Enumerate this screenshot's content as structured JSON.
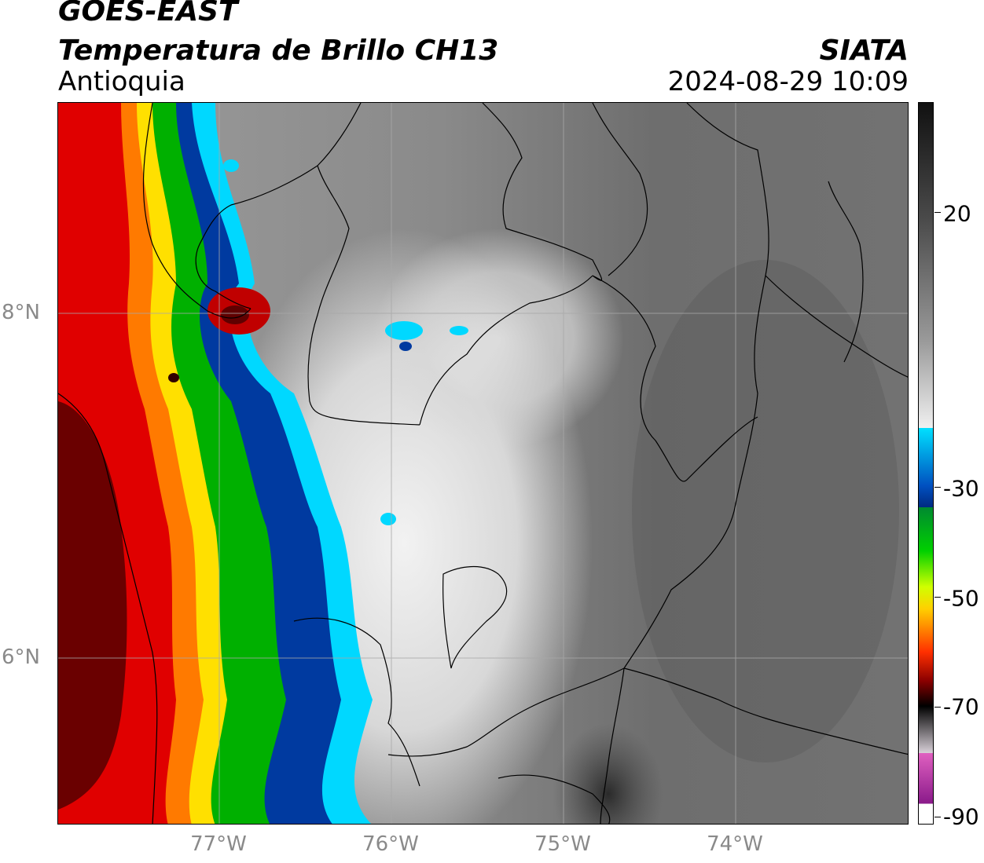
{
  "header": {
    "satellite": "GOES-EAST",
    "product": "Temperatura de Brillo CH13",
    "region": "Antioquia",
    "agency": "SIATA",
    "datetime": "2024-08-29 10:09"
  },
  "map": {
    "lat_labels": [
      "8°N",
      "6°N"
    ],
    "lon_labels": [
      "77°W",
      "76°W",
      "75°W",
      "74°W"
    ]
  },
  "colorbar": {
    "tick_labels": [
      "20",
      "-30",
      "-50",
      "-70",
      "-90"
    ],
    "colors": {
      "gray_warm": "#1a1a1a",
      "gray_mid": "#808080",
      "white": "#f5f5f5",
      "cyan": "#00e5ff",
      "blue": "#003a9a",
      "green": "#00b000",
      "yellow": "#ffea00",
      "orange": "#ff7a00",
      "red": "#e00000",
      "darkred": "#5a0000",
      "black": "#000000",
      "pink": "#e060c0",
      "purple": "#8a1a8a"
    }
  }
}
